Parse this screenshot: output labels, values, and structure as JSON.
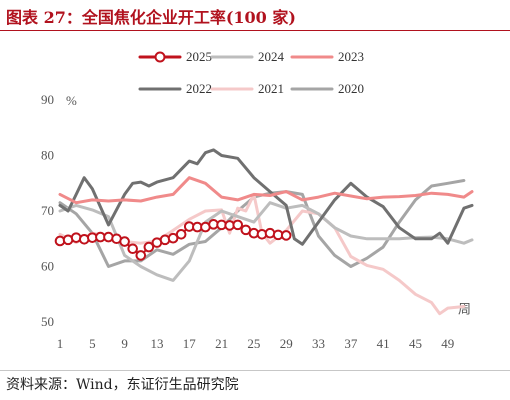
{
  "title": "图表 27：全国焦化企业开工率(100 家)",
  "source": "资料来源：Wind，东证衍生品研究院",
  "chart_data": {
    "type": "line",
    "ylabel_unit": "%",
    "xlabel_unit": "周",
    "ylim": [
      50,
      90
    ],
    "yticks": [
      50,
      60,
      70,
      80,
      90
    ],
    "xlim": [
      1,
      52
    ],
    "xticks": [
      1,
      5,
      9,
      13,
      17,
      21,
      25,
      29,
      33,
      37,
      41,
      45,
      49
    ],
    "legend_position": "top",
    "series": [
      {
        "name": "2025",
        "color": "#c0121c",
        "marker": "circle",
        "x": [
          1,
          2,
          3,
          4,
          5,
          6,
          7,
          8,
          9,
          10,
          11,
          12,
          13,
          14,
          15,
          16,
          17,
          18,
          19,
          20,
          21,
          22,
          23,
          24,
          25,
          26,
          27,
          28,
          29
        ],
        "values": [
          64.6,
          64.8,
          65.2,
          64.9,
          65.2,
          65.3,
          65.3,
          65.0,
          64.5,
          63.2,
          62.0,
          63.5,
          64.3,
          64.8,
          65.1,
          65.8,
          67.2,
          67.1,
          67.1,
          67.6,
          67.5,
          67.4,
          67.5,
          66.6,
          66.0,
          65.8,
          66.0,
          65.7,
          65.6
        ]
      },
      {
        "name": "2024",
        "color": "#bdbdbd",
        "x": [
          1,
          3,
          5,
          7,
          9,
          11,
          13,
          15,
          17,
          19,
          21,
          23,
          25,
          27,
          29,
          31,
          33,
          35,
          37,
          39,
          41,
          43,
          45,
          47,
          49,
          51,
          52
        ],
        "values": [
          70.0,
          71.0,
          70.2,
          69.0,
          62.0,
          60.0,
          58.5,
          57.5,
          61.0,
          68.0,
          70.0,
          69.0,
          68.0,
          71.5,
          70.5,
          71.0,
          69.5,
          67.0,
          65.5,
          65.0,
          65.0,
          65.0,
          65.2,
          65.3,
          65.0,
          64.2,
          64.8
        ]
      },
      {
        "name": "2023",
        "color": "#f08a8a",
        "x": [
          1,
          3,
          5,
          7,
          9,
          11,
          13,
          15,
          17,
          19,
          21,
          23,
          25,
          27,
          29,
          31,
          33,
          35,
          37,
          39,
          41,
          43,
          45,
          47,
          49,
          51,
          52
        ],
        "values": [
          73.0,
          71.5,
          72.0,
          71.8,
          72.0,
          71.8,
          72.5,
          73.0,
          76.0,
          75.0,
          72.5,
          72.0,
          73.0,
          72.8,
          73.5,
          72.0,
          72.5,
          73.2,
          72.7,
          72.2,
          72.5,
          72.6,
          72.8,
          73.2,
          73.0,
          72.5,
          73.5
        ]
      },
      {
        "name": "2022",
        "color": "#707070",
        "x": [
          1,
          2,
          3,
          4,
          5,
          7,
          9,
          10,
          11,
          12,
          13,
          15,
          17,
          18,
          19,
          20,
          21,
          23,
          25,
          27,
          29,
          30,
          31,
          33,
          35,
          37,
          39,
          41,
          43,
          45,
          47,
          48,
          49,
          51,
          52
        ],
        "values": [
          71.0,
          70.0,
          73.0,
          76.0,
          74.0,
          67.5,
          73.0,
          75.0,
          75.2,
          74.5,
          75.2,
          76.0,
          79.0,
          78.5,
          80.5,
          81.0,
          80.0,
          79.5,
          76.0,
          73.5,
          71.0,
          65.0,
          64.0,
          68.0,
          72.0,
          75.0,
          72.5,
          70.8,
          67.0,
          65.0,
          65.0,
          66.0,
          64.2,
          70.5,
          71.0
        ]
      },
      {
        "name": "2021",
        "color": "#f5c9c9",
        "x": [
          1,
          3,
          5,
          7,
          9,
          11,
          13,
          15,
          17,
          19,
          21,
          22,
          23,
          24,
          25,
          26,
          27,
          29,
          31,
          33,
          35,
          37,
          39,
          41,
          43,
          45,
          47,
          48,
          49,
          51
        ],
        "values": [
          65.8,
          64.3,
          66.0,
          65.5,
          64.5,
          64.2,
          64.6,
          66.5,
          68.5,
          70.0,
          70.2,
          66.0,
          70.5,
          70.0,
          73.0,
          66.0,
          64.2,
          66.5,
          70.0,
          69.5,
          67.0,
          61.8,
          60.2,
          59.5,
          57.5,
          55.0,
          53.5,
          51.5,
          52.5,
          52.8
        ]
      },
      {
        "name": "2020",
        "color": "#a5a5a5",
        "x": [
          1,
          3,
          5,
          7,
          9,
          11,
          13,
          15,
          17,
          19,
          21,
          23,
          25,
          27,
          29,
          31,
          33,
          35,
          37,
          39,
          41,
          43,
          45,
          47,
          49,
          51
        ],
        "values": [
          71.5,
          69.5,
          66.0,
          60.0,
          61.0,
          61.0,
          63.0,
          62.2,
          64.0,
          64.5,
          67.0,
          70.0,
          72.5,
          73.2,
          73.5,
          73.0,
          65.5,
          62.0,
          60.0,
          61.5,
          63.5,
          68.0,
          72.0,
          74.5,
          75.0,
          75.5
        ]
      }
    ]
  }
}
